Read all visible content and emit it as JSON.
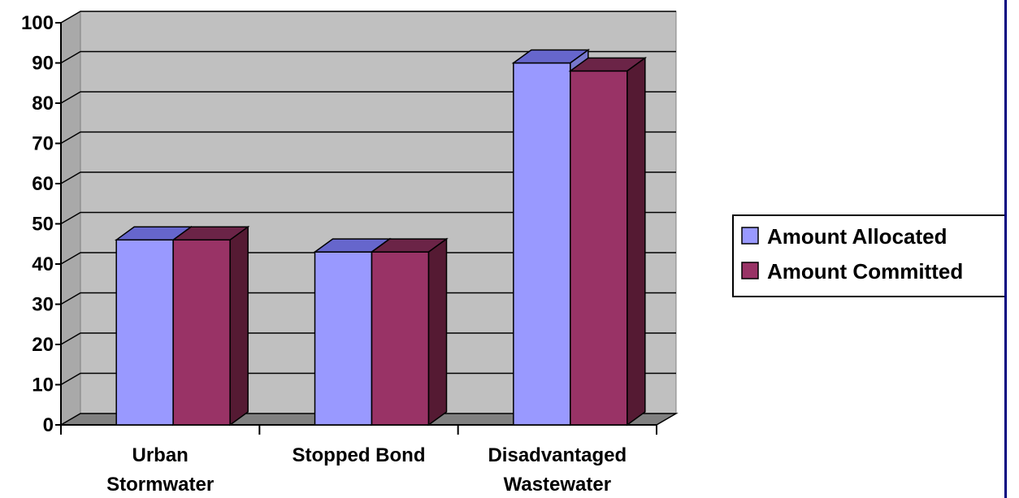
{
  "chart_data": {
    "type": "bar",
    "style": "3d-clustered-column",
    "title": "",
    "xlabel": "",
    "ylabel": "",
    "ylim": [
      0,
      100
    ],
    "yticks": [
      0,
      10,
      20,
      30,
      40,
      50,
      60,
      70,
      80,
      90,
      100
    ],
    "grid": true,
    "legend_position": "right",
    "categories": [
      [
        "Urban",
        "Stormwater"
      ],
      [
        "Stopped Bond"
      ],
      [
        "Disadvantaged",
        "Wastewater"
      ]
    ],
    "series": [
      {
        "name": "Amount Allocated",
        "values": [
          46,
          43,
          90
        ],
        "color": "#9999ff",
        "top_color": "#6666cc",
        "side_color": "#7777cc"
      },
      {
        "name": "Amount Committed",
        "values": [
          46,
          43,
          88
        ],
        "color": "#993366",
        "top_color": "#6b2447",
        "side_color": "#551a33"
      }
    ],
    "wall_color": "#c0c0c0",
    "floor_color": "#808080"
  }
}
